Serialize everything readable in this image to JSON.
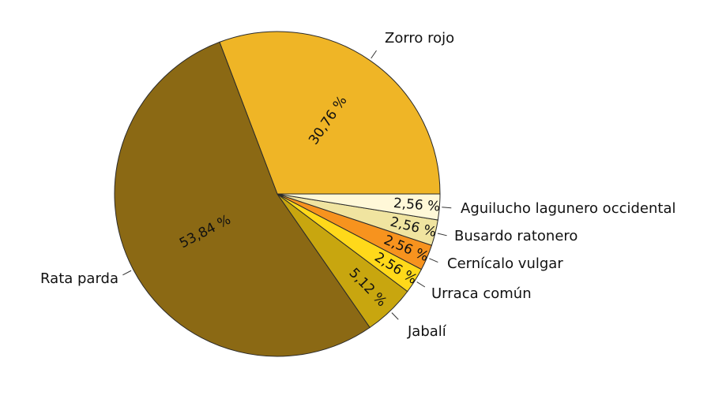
{
  "chart_data": {
    "type": "pie",
    "title": "",
    "start": "east, counterclockwise",
    "slices": [
      {
        "label": "Zorro rojo",
        "value": 30.76,
        "text": "30,76 %",
        "color": "#EFB526"
      },
      {
        "label": "Rata parda",
        "value": 53.84,
        "text": "53,84 %",
        "color": "#8B6914"
      },
      {
        "label": "Jabalí",
        "value": 5.12,
        "text": "5,12 %",
        "color": "#C8A60F"
      },
      {
        "label": "Urraca común",
        "value": 2.56,
        "text": "2,56 %",
        "color": "#FFD91A"
      },
      {
        "label": "Cernícalo vulgar",
        "value": 2.56,
        "text": "2,56 %",
        "color": "#F7931E"
      },
      {
        "label": "Busardo ratonero",
        "value": 2.56,
        "text": "2,56 %",
        "color": "#F0E4A0"
      },
      {
        "label": "Aguilucho lagunero occidental",
        "value": 2.56,
        "text": "2,56 %",
        "color": "#FFF8D8"
      }
    ]
  }
}
